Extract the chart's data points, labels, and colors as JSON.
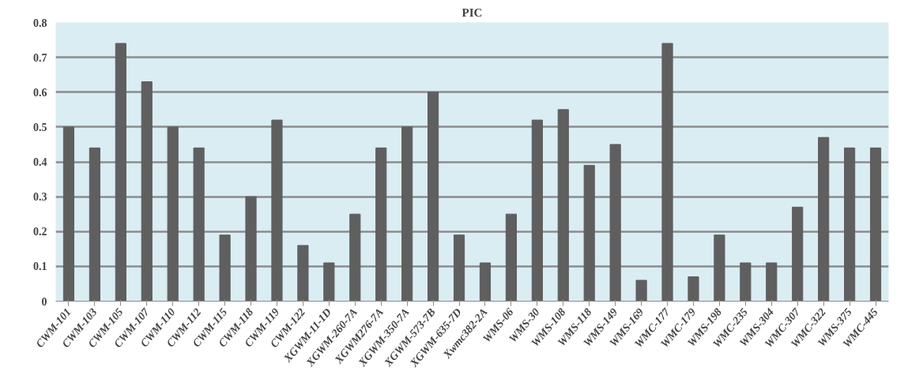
{
  "chart_data": {
    "type": "bar",
    "title": "PIC",
    "categories": [
      "CWM-101",
      "CWM-103",
      "CWM-105",
      "CWM-107",
      "CWM-110",
      "CWM-112",
      "CWM-115",
      "CWM-118",
      "CWM-119",
      "CWM-122",
      "XGWM-11-1D",
      "XGWM-260-7A",
      "XGWM276-7A",
      "XGWM-350-7A",
      "XGWM-573-7B",
      "XGWM-635-7D",
      "Xwmc382-2A",
      "WMS-06",
      "WMS-30",
      "WMS-108",
      "WMS-118",
      "WMS-149",
      "WMS-169",
      "WMC-177",
      "WMC-179",
      "WMS-198",
      "WMC-235",
      "WMS-304",
      "WMC-307",
      "WMC-322",
      "WMS-375",
      "WMC-445"
    ],
    "values": [
      0.5,
      0.44,
      0.74,
      0.63,
      0.5,
      0.44,
      0.19,
      0.3,
      0.52,
      0.16,
      0.11,
      0.25,
      0.44,
      0.5,
      0.6,
      0.19,
      0.11,
      0.25,
      0.52,
      0.55,
      0.39,
      0.45,
      0.06,
      0.74,
      0.07,
      0.19,
      0.11,
      0.11,
      0.27,
      0.47,
      0.44,
      0.44
    ],
    "color": "#5f5f5f",
    "ylim": [
      0,
      0.8
    ],
    "yticks": [
      {
        "value": 0,
        "label": "0"
      },
      0.1,
      0.2,
      0.3,
      0.4,
      0.5,
      0.6,
      0.7,
      0.8
    ],
    "grid": "y"
  }
}
